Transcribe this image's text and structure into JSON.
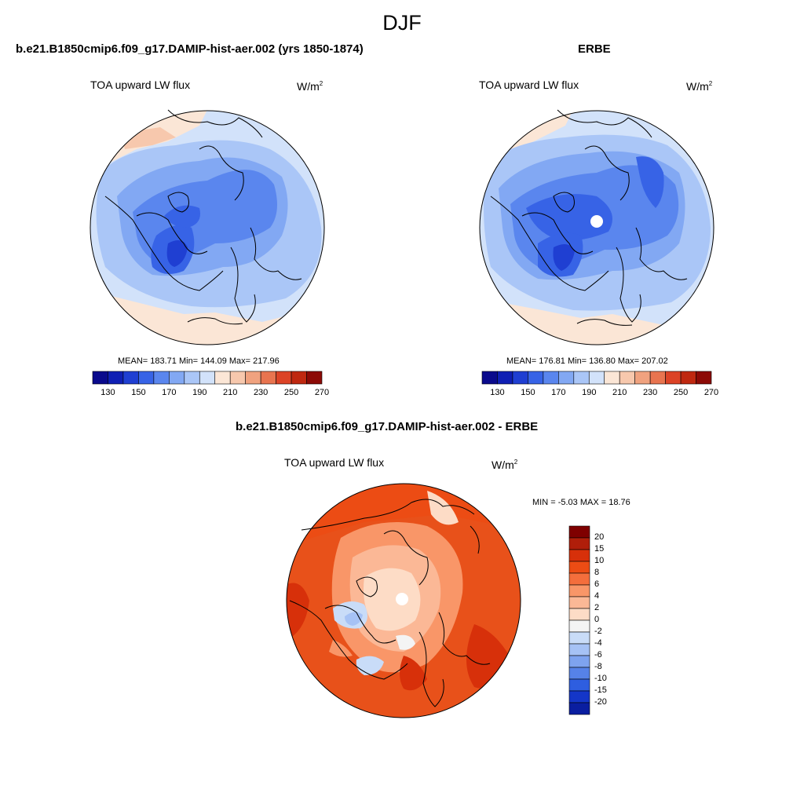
{
  "title": "DJF",
  "panels": [
    {
      "id": "model",
      "title": "b.e21.B1850cmip6.f09_g17.DAMIP-hist-aer.002 (yrs 1850-1874)",
      "variable": "TOA upward LW flux",
      "units_base": "W/m",
      "units_exp": "2",
      "stats": "MEAN= 183.71  Min= 144.09  Max= 217.96",
      "mean": 183.71,
      "min": 144.09,
      "max": 217.96,
      "polar_hole": false
    },
    {
      "id": "obs",
      "title": "ERBE",
      "variable": "TOA upward LW flux",
      "units_base": "W/m",
      "units_exp": "2",
      "stats": "MEAN= 176.81  Min= 136.80  Max= 207.02",
      "mean": 176.81,
      "min": 136.8,
      "max": 207.02,
      "polar_hole": true
    },
    {
      "id": "diff",
      "title": "b.e21.B1850cmip6.f09_g17.DAMIP-hist-aer.002 - ERBE",
      "variable": "TOA upward LW flux",
      "units_base": "W/m",
      "units_exp": "2",
      "stats": "MIN =  -5.03 MAX =  18.76",
      "min": -5.03,
      "max": 18.76,
      "polar_hole": true
    }
  ],
  "colorbar_abs": {
    "orientation": "horizontal",
    "tick_labels": [
      "130",
      "150",
      "170",
      "190",
      "210",
      "230",
      "250",
      "270"
    ],
    "colors": [
      "#0a0a8c",
      "#0f1fb4",
      "#1f3fd2",
      "#3763e6",
      "#5a86ee",
      "#82a8f3",
      "#aac6f7",
      "#d2e2fa",
      "#fbe6d6",
      "#f7c8ad",
      "#f0a27f",
      "#e8744f",
      "#dc4326",
      "#bf2810",
      "#8c0a06"
    ]
  },
  "colorbar_diff": {
    "orientation": "vertical",
    "tick_labels": [
      "20",
      "15",
      "10",
      "8",
      "6",
      "4",
      "2",
      "0",
      "-2",
      "-4",
      "-6",
      "-8",
      "-10",
      "-15",
      "-20"
    ],
    "colors": [
      "#7f0000",
      "#b01e0a",
      "#d7300a",
      "#ec4c14",
      "#f46e3c",
      "#f99668",
      "#fbb896",
      "#fddcc6",
      "#f4f4f4",
      "#c9dcf8",
      "#a6c2f5",
      "#7ea3ef",
      "#5682e8",
      "#2e5ee0",
      "#1436c8",
      "#0a1ea0"
    ]
  },
  "map_colors": {
    "abs_background": "#d2e2fa",
    "diff_background": "#e8511a"
  }
}
